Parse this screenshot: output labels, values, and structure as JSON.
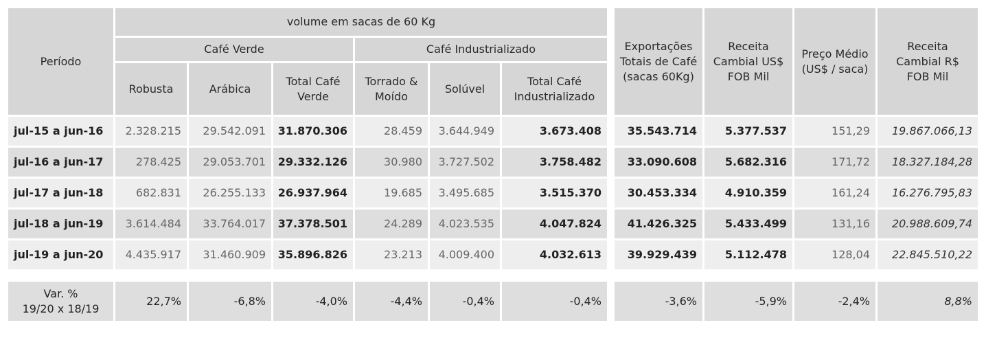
{
  "chart_data": {
    "type": "table",
    "header": {
      "periodo": "Período",
      "volume_group": "volume em sacas de 60 Kg",
      "cafe_verde_group": "Café Verde",
      "cafe_industrializado_group": "Café Industrializado",
      "robusta": "Robusta",
      "arabica": "Arábica",
      "total_verde": "Total Café Verde",
      "torrado": "Torrado & Moído",
      "soluvel": "Solúvel",
      "total_industrializado": "Total Café Industrializado",
      "exportacoes": "Exportações Totais de Café (sacas 60Kg)",
      "receita_usd": "Receita Cambial US$ FOB Mil",
      "preco_medio": "Preço Médio (US$ / saca)",
      "receita_brl": "Receita Cambial R$ FOB Mil"
    },
    "rows": [
      [
        "jul-15 a jun-16",
        "2.328.215",
        "29.542.091",
        "31.870.306",
        "28.459",
        "3.644.949",
        "3.673.408",
        "35.543.714",
        "5.377.537",
        "151,29",
        "19.867.066,13"
      ],
      [
        "jul-16 a jun-17",
        "278.425",
        "29.053.701",
        "29.332.126",
        "30.980",
        "3.727.502",
        "3.758.482",
        "33.090.608",
        "5.682.316",
        "171,72",
        "18.327.184,28"
      ],
      [
        "jul-17 a jun-18",
        "682.831",
        "26.255.133",
        "26.937.964",
        "19.685",
        "3.495.685",
        "3.515.370",
        "30.453.334",
        "4.910.359",
        "161,24",
        "16.276.795,83"
      ],
      [
        "jul-18 a jun-19",
        "3.614.484",
        "33.764.017",
        "37.378.501",
        "24.289",
        "4.023.535",
        "4.047.824",
        "41.426.325",
        "5.433.499",
        "131,16",
        "20.988.609,74"
      ],
      [
        "jul-19 a jun-20",
        "4.435.917",
        "31.460.909",
        "35.896.826",
        "23.213",
        "4.009.400",
        "4.032.613",
        "39.929.439",
        "5.112.478",
        "128,04",
        "22.845.510,22"
      ]
    ],
    "variation": {
      "label_line1": "Var. %",
      "label_line2": "19/20 x 18/19",
      "values": [
        "22,7%",
        "-6,8%",
        "-4,0%",
        "-4,4%",
        "-0,4%",
        "-0,4%",
        "-3,6%",
        "-5,9%",
        "-2,4%",
        "8,8%"
      ]
    }
  },
  "colors": {
    "header_bg": "#d6d6d6",
    "row_light": "#eeeeee",
    "row_dark": "#dedede"
  }
}
